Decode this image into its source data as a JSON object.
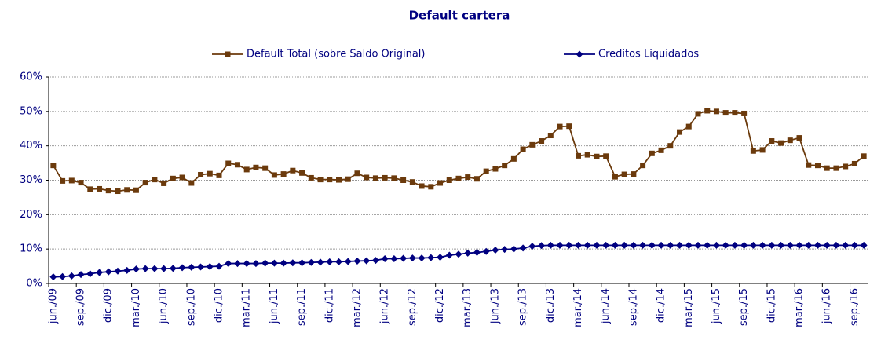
{
  "chart_data": {
    "type": "line",
    "title": "Default cartera",
    "categories": [
      "jun./09",
      null,
      null,
      "sep./09",
      null,
      null,
      "dic./09",
      null,
      null,
      "mar./10",
      null,
      null,
      "jun./10",
      null,
      null,
      "sep./10",
      null,
      null,
      "dic./10",
      null,
      null,
      "mar./11",
      null,
      null,
      "jun./11",
      null,
      null,
      "sep./11",
      null,
      null,
      "dic./11",
      null,
      null,
      "mar./12",
      null,
      null,
      "jun./12",
      null,
      null,
      "sep./12",
      null,
      null,
      "dic./12",
      null,
      null,
      "mar./13",
      null,
      null,
      "jun./13",
      null,
      null,
      "sep./13",
      null,
      null,
      "dic./13",
      null,
      null,
      "mar./14",
      null,
      null,
      "jun./14",
      null,
      null,
      "sep./14",
      null,
      null,
      "dic./14",
      null,
      null,
      "mar./15",
      null,
      null,
      "jun./15",
      null,
      null,
      "sep./15",
      null,
      null,
      "dic./15",
      null,
      null,
      "mar./16",
      null,
      null,
      "jun./16",
      null,
      null,
      "sep./16",
      null
    ],
    "series": [
      {
        "name": "Default Total (sobre Saldo Original)",
        "color": "#6b3a0c",
        "marker": "square",
        "values": [
          34.3,
          29.8,
          29.9,
          29.3,
          27.4,
          27.5,
          27.0,
          26.8,
          27.2,
          27.1,
          29.3,
          30.2,
          29.1,
          30.5,
          30.8,
          29.2,
          31.6,
          31.9,
          31.4,
          34.9,
          34.5,
          33.1,
          33.7,
          33.5,
          31.5,
          31.8,
          32.8,
          32.1,
          30.7,
          30.2,
          30.2,
          30.1,
          30.3,
          32.0,
          30.8,
          30.6,
          30.7,
          30.6,
          30.0,
          29.5,
          28.3,
          28.1,
          29.2,
          30.0,
          30.5,
          30.9,
          30.4,
          32.6,
          33.3,
          34.3,
          36.2,
          39.0,
          40.3,
          41.4,
          43.0,
          45.6,
          45.7,
          37.1,
          37.4,
          36.9,
          37.0,
          31.0,
          31.7,
          31.8,
          34.3,
          37.8,
          38.7,
          40.0,
          44.0,
          45.6,
          49.3,
          50.2,
          50.0,
          49.6,
          49.6,
          49.4,
          38.5,
          38.8,
          41.4,
          40.8,
          41.6,
          42.3,
          34.4,
          34.3,
          33.5,
          33.5,
          34.0,
          34.8,
          37.0
        ]
      },
      {
        "name": "Creditos Liquidados",
        "color": "#000080",
        "marker": "diamond",
        "values": [
          1.9,
          2.0,
          2.2,
          2.6,
          2.8,
          3.2,
          3.4,
          3.6,
          3.8,
          4.2,
          4.3,
          4.3,
          4.3,
          4.4,
          4.6,
          4.7,
          4.8,
          4.9,
          5.0,
          5.8,
          5.8,
          5.8,
          5.8,
          5.9,
          5.9,
          5.9,
          6.0,
          6.0,
          6.1,
          6.2,
          6.3,
          6.3,
          6.4,
          6.5,
          6.6,
          6.7,
          7.2,
          7.2,
          7.3,
          7.4,
          7.4,
          7.5,
          7.6,
          8.2,
          8.5,
          8.8,
          9.0,
          9.3,
          9.7,
          9.9,
          10.0,
          10.3,
          10.8,
          11.0,
          11.1,
          11.1,
          11.1,
          11.1,
          11.1,
          11.1,
          11.1,
          11.1,
          11.1,
          11.1,
          11.1,
          11.1,
          11.1,
          11.1,
          11.1,
          11.1,
          11.1,
          11.1,
          11.1,
          11.1,
          11.1,
          11.1,
          11.1,
          11.1,
          11.1,
          11.1,
          11.1,
          11.1,
          11.1,
          11.1,
          11.1,
          11.1,
          11.1,
          11.1,
          11.1
        ]
      }
    ],
    "ylim": [
      0,
      60
    ],
    "yticks": [
      {
        "value": 0,
        "label": "0%"
      },
      {
        "value": 10,
        "label": "10%"
      },
      {
        "value": 20,
        "label": "20%"
      },
      {
        "value": 30,
        "label": "30%"
      },
      {
        "value": 40,
        "label": "40%"
      },
      {
        "value": 50,
        "label": "50%"
      },
      {
        "value": 60,
        "label": "60%"
      }
    ],
    "grid": true,
    "legend": "top"
  }
}
